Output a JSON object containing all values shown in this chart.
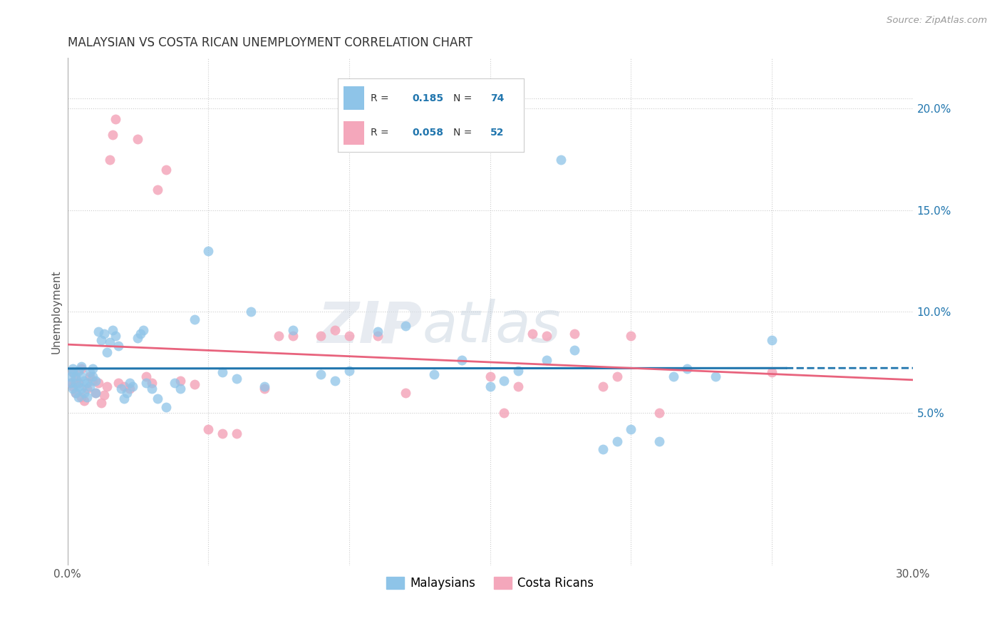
{
  "title": "MALAYSIAN VS COSTA RICAN UNEMPLOYMENT CORRELATION CHART",
  "source": "Source: ZipAtlas.com",
  "ylabel": "Unemployment",
  "xlim": [
    0.0,
    0.3
  ],
  "ylim": [
    -0.025,
    0.225
  ],
  "yticks_right": [
    0.05,
    0.1,
    0.15,
    0.2
  ],
  "ytick_labels_right": [
    "5.0%",
    "10.0%",
    "15.0%",
    "20.0%"
  ],
  "xtick_vals": [
    0.0,
    0.05,
    0.1,
    0.15,
    0.2,
    0.25,
    0.3
  ],
  "xtick_labels": [
    "0.0%",
    "",
    "",
    "",
    "",
    "",
    "30.0%"
  ],
  "color_blue": "#8ec4e8",
  "color_pink": "#f4a7bb",
  "color_blue_line": "#2176ae",
  "color_pink_line": "#e8637d",
  "color_blue_text": "#2176ae",
  "watermark_zip": "ZIP",
  "watermark_atlas": "atlas",
  "background_color": "#ffffff",
  "grid_color": "#cccccc",
  "malaysians_x": [
    0.001,
    0.001,
    0.002,
    0.002,
    0.002,
    0.003,
    0.003,
    0.003,
    0.004,
    0.004,
    0.004,
    0.005,
    0.005,
    0.005,
    0.006,
    0.006,
    0.007,
    0.007,
    0.008,
    0.008,
    0.009,
    0.009,
    0.01,
    0.01,
    0.011,
    0.012,
    0.013,
    0.014,
    0.015,
    0.016,
    0.017,
    0.018,
    0.019,
    0.02,
    0.021,
    0.022,
    0.023,
    0.025,
    0.026,
    0.027,
    0.028,
    0.03,
    0.032,
    0.035,
    0.038,
    0.04,
    0.045,
    0.05,
    0.055,
    0.06,
    0.065,
    0.07,
    0.08,
    0.09,
    0.095,
    0.1,
    0.11,
    0.12,
    0.13,
    0.14,
    0.15,
    0.155,
    0.16,
    0.17,
    0.175,
    0.18,
    0.19,
    0.195,
    0.2,
    0.21,
    0.215,
    0.22,
    0.23,
    0.25
  ],
  "malaysians_y": [
    0.065,
    0.068,
    0.062,
    0.07,
    0.072,
    0.06,
    0.065,
    0.068,
    0.058,
    0.063,
    0.071,
    0.062,
    0.068,
    0.073,
    0.06,
    0.066,
    0.058,
    0.065,
    0.063,
    0.07,
    0.068,
    0.072,
    0.06,
    0.066,
    0.09,
    0.086,
    0.089,
    0.08,
    0.085,
    0.091,
    0.088,
    0.083,
    0.062,
    0.057,
    0.06,
    0.065,
    0.063,
    0.087,
    0.089,
    0.091,
    0.065,
    0.062,
    0.057,
    0.053,
    0.065,
    0.062,
    0.096,
    0.13,
    0.07,
    0.067,
    0.1,
    0.063,
    0.091,
    0.069,
    0.066,
    0.071,
    0.09,
    0.093,
    0.069,
    0.076,
    0.063,
    0.066,
    0.071,
    0.076,
    0.175,
    0.081,
    0.032,
    0.036,
    0.042,
    0.036,
    0.068,
    0.072,
    0.068,
    0.086
  ],
  "costa_rican_x": [
    0.001,
    0.002,
    0.002,
    0.003,
    0.003,
    0.004,
    0.005,
    0.005,
    0.006,
    0.007,
    0.008,
    0.009,
    0.01,
    0.011,
    0.012,
    0.013,
    0.014,
    0.015,
    0.016,
    0.017,
    0.018,
    0.02,
    0.022,
    0.025,
    0.028,
    0.03,
    0.032,
    0.035,
    0.04,
    0.045,
    0.05,
    0.055,
    0.06,
    0.07,
    0.075,
    0.08,
    0.09,
    0.095,
    0.1,
    0.11,
    0.12,
    0.15,
    0.155,
    0.16,
    0.165,
    0.17,
    0.18,
    0.19,
    0.195,
    0.2,
    0.21,
    0.25
  ],
  "costa_rican_y": [
    0.065,
    0.063,
    0.07,
    0.06,
    0.067,
    0.065,
    0.058,
    0.072,
    0.056,
    0.062,
    0.068,
    0.066,
    0.06,
    0.065,
    0.055,
    0.059,
    0.063,
    0.175,
    0.187,
    0.195,
    0.065,
    0.063,
    0.062,
    0.185,
    0.068,
    0.065,
    0.16,
    0.17,
    0.066,
    0.064,
    0.042,
    0.04,
    0.04,
    0.062,
    0.088,
    0.088,
    0.088,
    0.091,
    0.088,
    0.088,
    0.06,
    0.068,
    0.05,
    0.063,
    0.089,
    0.088,
    0.089,
    0.063,
    0.068,
    0.088,
    0.05,
    0.07
  ]
}
